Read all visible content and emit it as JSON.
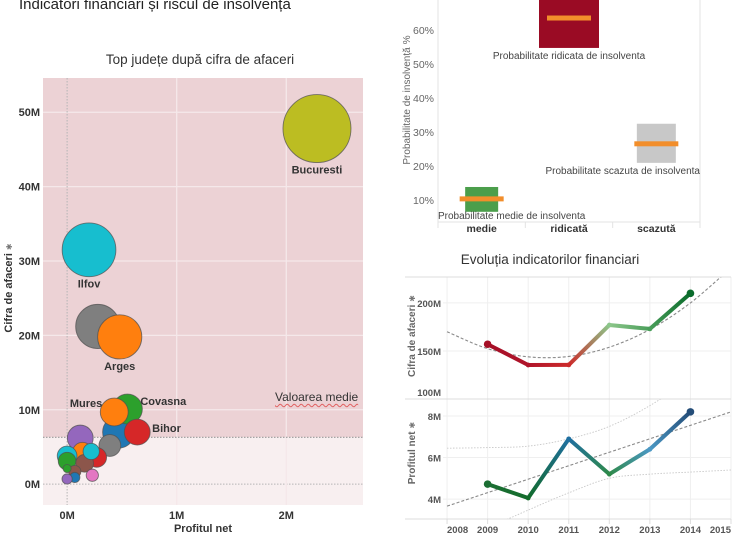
{
  "page": {
    "title": "Indicatori financiari și riscul de insolvență"
  },
  "icons": {
    "axis_sort": {
      "name": "sort-indicator-icon",
      "glyph": "✱"
    }
  },
  "chart_data": [
    {
      "type": "scatter",
      "title": "Top județe după cifra de afaceri",
      "xlabel": "Profitul net",
      "ylabel": "Cifra de afaceri",
      "unit": "M",
      "xlim": [
        -0.22,
        2.7
      ],
      "ylim": [
        -2.8,
        54.6
      ],
      "grid": true,
      "x_ticks": [
        {
          "value": 0,
          "label": "0M"
        },
        {
          "value": 1,
          "label": "1M"
        },
        {
          "value": 2,
          "label": "2M"
        }
      ],
      "y_ticks": [
        {
          "value": 0,
          "label": "0M"
        },
        {
          "value": 10,
          "label": "10M"
        },
        {
          "value": 20,
          "label": "20M"
        },
        {
          "value": 30,
          "label": "30M"
        },
        {
          "value": 40,
          "label": "40M"
        },
        {
          "value": 50,
          "label": "50M"
        }
      ],
      "reference_line": {
        "label": "Valoarea medie",
        "value": 6.3,
        "axis": "y"
      },
      "colors": {
        "above_mean": "#ecd2d5",
        "below_mean": "#f8eff0"
      },
      "points": [
        {
          "label": "Bucuresti",
          "x": 2.28,
          "y": 47.8,
          "size": 1.0,
          "color": "#bcbd22",
          "label_pos": "below"
        },
        {
          "label": "Ilfov",
          "x": 0.2,
          "y": 31.5,
          "size": 0.79,
          "color": "#17becf",
          "label_pos": "below"
        },
        {
          "label": null,
          "x": 0.28,
          "y": 21.2,
          "size": 0.65,
          "color": "#7f7f7f"
        },
        {
          "label": "Arges",
          "x": 0.48,
          "y": 19.8,
          "size": 0.65,
          "color": "#ff7f0e",
          "label_pos": "below"
        },
        {
          "label": "Mures",
          "x": 0.43,
          "y": 9.7,
          "size": 0.41,
          "color": "#ff7f0e",
          "label_pos": "left"
        },
        {
          "label": "Covasna",
          "x": 0.55,
          "y": 10.1,
          "size": 0.44,
          "color": "#2ca02c",
          "label_pos": "right-top"
        },
        {
          "label": null,
          "x": 0.47,
          "y": 7.0,
          "size": 0.47,
          "color": "#1f77b4"
        },
        {
          "label": "Bihor",
          "x": 0.64,
          "y": 7.0,
          "size": 0.38,
          "color": "#d62728",
          "label_pos": "right"
        },
        {
          "label": null,
          "x": 0.39,
          "y": 5.2,
          "size": 0.32,
          "color": "#7f7f7f"
        },
        {
          "label": null,
          "x": 0.12,
          "y": 6.2,
          "size": 0.38,
          "color": "#9467bd"
        },
        {
          "label": null,
          "x": 0.22,
          "y": 4.4,
          "size": 0.24,
          "color": "#17becf"
        },
        {
          "label": null,
          "x": 0.14,
          "y": 4.3,
          "size": 0.29,
          "color": "#ff7f0e"
        },
        {
          "label": null,
          "x": 0.27,
          "y": 3.6,
          "size": 0.29,
          "color": "#d62728"
        },
        {
          "label": null,
          "x": 0.0,
          "y": 3.8,
          "size": 0.29,
          "color": "#17becf"
        },
        {
          "label": null,
          "x": 0.0,
          "y": 3.1,
          "size": 0.26,
          "color": "#2ca02c"
        },
        {
          "label": null,
          "x": 0.16,
          "y": 2.8,
          "size": 0.26,
          "color": "#8c564b"
        },
        {
          "label": null,
          "x": 0.23,
          "y": 1.2,
          "size": 0.18,
          "color": "#e377c2"
        },
        {
          "label": null,
          "x": 0.07,
          "y": 1.7,
          "size": 0.18,
          "color": "#8c564b"
        },
        {
          "label": null,
          "x": 0.0,
          "y": 2.1,
          "size": 0.12,
          "color": "#2ca02c"
        },
        {
          "label": null,
          "x": 0.07,
          "y": 0.9,
          "size": 0.15,
          "color": "#1f77b4"
        },
        {
          "label": null,
          "x": 0.0,
          "y": 0.7,
          "size": 0.15,
          "color": "#9467bd"
        }
      ]
    },
    {
      "type": "bar",
      "subtype": "range",
      "ylabel": "Probabilitate de insolvență",
      "ylabel_suffix": "%",
      "categories": [
        "medie",
        "ridicată",
        "scazută"
      ],
      "ylim": [
        3.5,
        68.8
      ],
      "y_ticks": [
        {
          "value": 10,
          "label": "10%"
        },
        {
          "value": 20,
          "label": "20%"
        },
        {
          "value": 30,
          "label": "30%"
        },
        {
          "value": 40,
          "label": "40%"
        },
        {
          "value": 50,
          "label": "50%"
        },
        {
          "value": 60,
          "label": "60%"
        }
      ],
      "mean_color": "#f28e2b",
      "series": [
        {
          "category": "medie",
          "low": 6.5,
          "high": 13.8,
          "mean": 10.3,
          "relative_width": 0.55,
          "color": "#4b9e4b",
          "annotation": "Probabilitate medie de insolventa"
        },
        {
          "category": "ridicată",
          "low": 54.7,
          "high": 72.0,
          "mean": 63.5,
          "relative_width": 1.0,
          "color": "#9a0b24",
          "annotation": "Probabilitate ridicata de insolventa"
        },
        {
          "category": "scazută",
          "low": 20.9,
          "high": 32.4,
          "mean": 26.5,
          "relative_width": 0.65,
          "color": "#c8c8c8",
          "annotation": "Probabilitate scazuta de insolventa"
        }
      ]
    },
    {
      "type": "line",
      "title": "Evoluția indicatorilor financiari",
      "x": [
        2009,
        2010,
        2011,
        2012,
        2013,
        2014
      ],
      "x_ticks": [
        2008,
        2009,
        2010,
        2011,
        2012,
        2013,
        2014,
        2015
      ],
      "xlim": [
        2007.9,
        2015.0
      ],
      "series": [
        {
          "name": "Cifra de afaceri",
          "ylabel": "Cifra de afaceri",
          "ylim": [
            100,
            227
          ],
          "y_ticks": [
            {
              "value": 100,
              "label": "100M"
            },
            {
              "value": 150,
              "label": "150M"
            },
            {
              "value": 200,
              "label": "200M"
            }
          ],
          "values": [
            157,
            135.4,
            135.5,
            177,
            173,
            210
          ],
          "colors": [
            "#a50f26",
            "#b0142a",
            "#cc2a2a",
            "#8cc68a",
            "#4a9e5a",
            "#0a6b2b"
          ],
          "trend": {
            "type": "polynomial",
            "x": [
              2008,
              2009,
              2010,
              2011,
              2012,
              2013,
              2014,
              2015
            ],
            "values": [
              170,
              152.4,
              143.9,
              144.3,
              153.9,
              172.4,
              200,
              236.6
            ]
          }
        },
        {
          "name": "Profitul net",
          "ylabel": "Profitul net",
          "ylim": [
            3.04,
            8.82
          ],
          "y_ticks": [
            {
              "value": 4,
              "label": "4M"
            },
            {
              "value": 6,
              "label": "6M"
            },
            {
              "value": 8,
              "label": "8M"
            }
          ],
          "values": [
            4.72,
            4.05,
            6.9,
            5.2,
            6.4,
            8.2
          ],
          "colors": [
            "#1c6e33",
            "#126b2b",
            "#1f6fa0",
            "#2f8a4a",
            "#4b98c4",
            "#244d78"
          ],
          "trend": {
            "type": "linear",
            "x": [
              2008,
              2015
            ],
            "values": [
              3.66,
              8.2
            ]
          },
          "confidence_upper": {
            "x": [
              2008,
              2009,
              2010,
              2011,
              2012,
              2013,
              2014
            ],
            "values": [
              6.45,
              6.48,
              6.55,
              6.9,
              7.5,
              8.5,
              9.8
            ]
          },
          "confidence_lower": {
            "x": [
              2009,
              2010,
              2011,
              2012,
              2013,
              2014,
              2015
            ],
            "values": [
              2.6,
              3.47,
              4.3,
              5.0,
              5.2,
              5.3,
              5.4
            ]
          }
        }
      ]
    }
  ]
}
